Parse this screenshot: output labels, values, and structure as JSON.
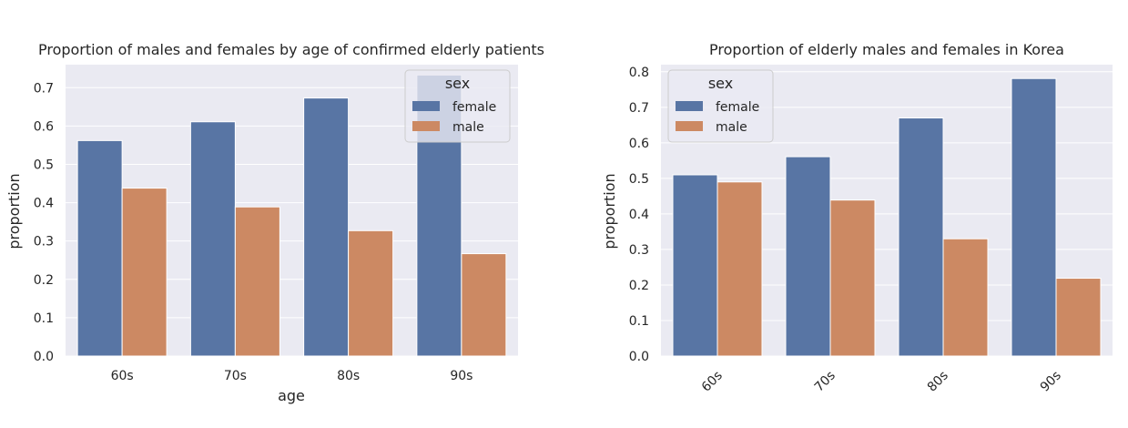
{
  "colors": {
    "female": "#5875a4",
    "male": "#cc8963",
    "panel_bg": "#eaeaf2",
    "grid": "#ffffff",
    "text": "#262626"
  },
  "chart_data": [
    {
      "type": "bar",
      "title": "Proportion of males and females by age of confirmed elderly patients",
      "xlabel": "age",
      "ylabel": "proportion",
      "categories": [
        "60s",
        "70s",
        "80s",
        "90s"
      ],
      "series": [
        {
          "name": "female",
          "values": [
            0.562,
            0.611,
            0.673,
            0.733
          ]
        },
        {
          "name": "male",
          "values": [
            0.438,
            0.389,
            0.327,
            0.267
          ]
        }
      ],
      "ylim": [
        0,
        0.76
      ],
      "yticks": [
        "0.0",
        "0.1",
        "0.2",
        "0.3",
        "0.4",
        "0.5",
        "0.6",
        "0.7"
      ],
      "legend": {
        "title": "sex",
        "position": "top-right"
      },
      "grid": true,
      "xtick_rotation": 0
    },
    {
      "type": "bar",
      "title": "Proportion of elderly males and females in Korea",
      "xlabel": "",
      "ylabel": "proportion",
      "categories": [
        "60s",
        "70s",
        "80s",
        "90s"
      ],
      "series": [
        {
          "name": "female",
          "values": [
            0.51,
            0.561,
            0.67,
            0.781
          ]
        },
        {
          "name": "male",
          "values": [
            0.49,
            0.439,
            0.33,
            0.219
          ]
        }
      ],
      "ylim": [
        0,
        0.82
      ],
      "yticks": [
        "0.0",
        "0.1",
        "0.2",
        "0.3",
        "0.4",
        "0.5",
        "0.6",
        "0.7",
        "0.8"
      ],
      "legend": {
        "title": "sex",
        "position": "top-left"
      },
      "grid": true,
      "xtick_rotation": -45
    }
  ]
}
